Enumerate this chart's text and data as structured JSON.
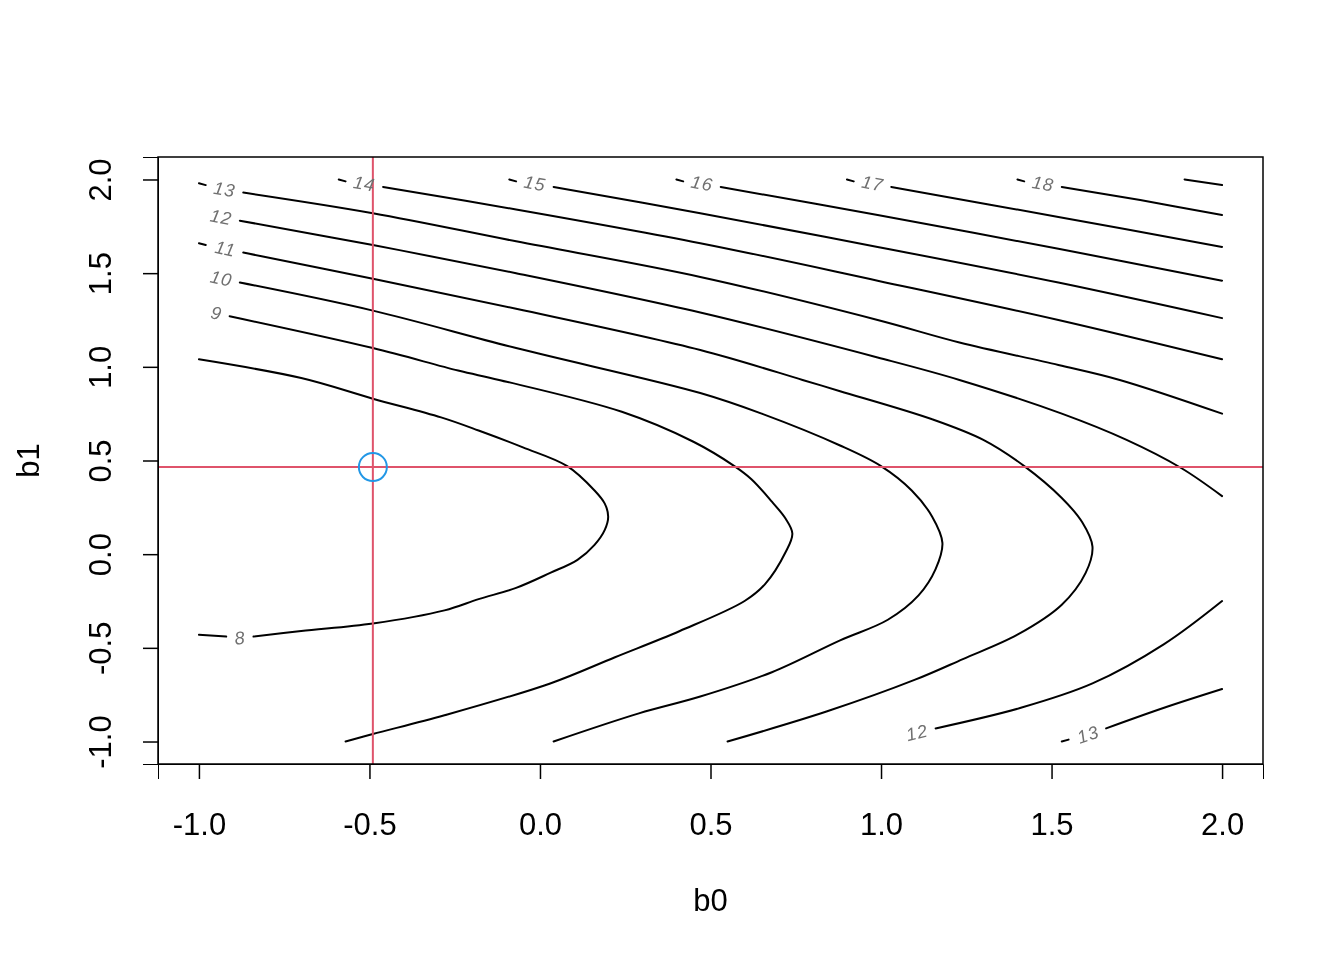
{
  "chart_data": {
    "type": "line",
    "xlabel": "b0",
    "ylabel": "b1",
    "xlim": [
      -1.12,
      2.12
    ],
    "ylim": [
      -1.12,
      2.12
    ],
    "xticks": [
      {
        "value": -1,
        "label": "-1.0"
      },
      -0.5,
      {
        "value": 0,
        "label": "0.0"
      },
      0.5,
      {
        "value": 1,
        "label": "1.0"
      },
      1.5,
      {
        "value": 2,
        "label": "2.0"
      }
    ],
    "yticks": [
      {
        "value": -1,
        "label": "-1.0"
      },
      -0.5,
      {
        "value": 0,
        "label": "0.0"
      },
      0.5,
      {
        "value": 1,
        "label": "1.0"
      },
      1.5,
      {
        "value": 2,
        "label": "2.0"
      }
    ],
    "series": [
      {
        "name": "8",
        "color": "#000000",
        "x": [
          -1.0,
          -0.92,
          null,
          -0.84,
          -0.7,
          -0.49,
          -0.28,
          -0.18,
          -0.07,
          0.03,
          0.11,
          0.16,
          0.19,
          0.2,
          0.19,
          0.16,
          0.08,
          -0.05,
          -0.18,
          -0.29,
          -0.49,
          -0.7,
          -1.0
        ],
        "values": [
          -0.43,
          -0.44,
          null,
          -0.44,
          -0.41,
          -0.37,
          -0.3,
          -0.24,
          -0.18,
          -0.1,
          -0.03,
          0.05,
          0.13,
          0.2,
          0.27,
          0.34,
          0.47,
          0.57,
          0.66,
          0.73,
          0.83,
          0.94,
          1.04
        ]
      },
      {
        "name": "9",
        "color": "#000000",
        "x": [
          -0.91,
          -0.49,
          -0.24,
          -0.12,
          0.24,
          0.45,
          0.57,
          0.62,
          0.68,
          0.72,
          0.74,
          0.72,
          0.66,
          0.6,
          0.41,
          0.22,
          0.03,
          -0.28,
          -0.49,
          -0.57
        ],
        "values": [
          1.27,
          1.1,
          0.98,
          0.93,
          0.76,
          0.6,
          0.47,
          0.4,
          0.28,
          0.19,
          0.11,
          0.01,
          -0.16,
          -0.25,
          -0.41,
          -0.55,
          -0.69,
          -0.86,
          -0.96,
          -1.0
        ]
      },
      {
        "name": "10",
        "color": "#000000",
        "x": [
          -0.88,
          -0.49,
          -0.07,
          0.47,
          0.65,
          0.88,
          1.0,
          1.09,
          1.15,
          1.18,
          1.16,
          1.11,
          1.02,
          0.88,
          0.68,
          0.47,
          0.29,
          0.04
        ],
        "values": [
          1.45,
          1.3,
          1.1,
          0.86,
          0.75,
          0.58,
          0.47,
          0.34,
          0.2,
          0.06,
          -0.08,
          -0.22,
          -0.35,
          -0.46,
          -0.63,
          -0.76,
          -0.85,
          -1.0
        ]
      },
      {
        "name": "11",
        "color": "#000000",
        "x": [
          -1.0,
          -0.98,
          null,
          -0.87,
          -0.49,
          -0.07,
          0.47,
          0.77,
          0.88,
          1.15,
          1.3,
          1.42,
          1.53,
          1.59,
          1.62,
          1.6,
          1.53,
          1.4,
          1.24,
          1.1,
          0.84,
          0.55
        ],
        "values": [
          1.66,
          1.65,
          null,
          1.61,
          1.47,
          1.31,
          1.09,
          0.93,
          0.87,
          0.72,
          0.61,
          0.47,
          0.3,
          0.17,
          0.04,
          -0.1,
          -0.27,
          -0.43,
          -0.56,
          -0.67,
          -0.84,
          -1.0
        ]
      },
      {
        "name": "12",
        "color": "#000000",
        "x": [
          -0.88,
          -0.49,
          -0.07,
          0.47,
          0.99,
          1.23,
          1.53,
          1.72,
          1.88,
          2.0,
          null,
          1.16,
          1.41,
          1.62,
          1.83,
          2.0
        ],
        "values": [
          1.78,
          1.65,
          1.5,
          1.29,
          1.05,
          0.93,
          0.75,
          0.61,
          0.46,
          0.31,
          null,
          -0.93,
          -0.82,
          -0.69,
          -0.48,
          -0.25
        ]
      },
      {
        "name": "13",
        "color": "#000000",
        "x": [
          -1.0,
          -0.98,
          null,
          -0.87,
          -0.49,
          -0.07,
          0.47,
          0.99,
          1.23,
          1.52,
          1.7,
          2.0,
          null,
          1.66,
          1.83,
          2.0,
          null,
          1.53,
          1.55
        ],
        "values": [
          1.98,
          1.97,
          null,
          1.93,
          1.82,
          1.67,
          1.48,
          1.25,
          1.13,
          1.01,
          0.93,
          0.75,
          null,
          -0.93,
          -0.82,
          -0.72,
          null,
          -1.0,
          -0.99
        ]
      },
      {
        "name": "14",
        "color": "#000000",
        "x": [
          -0.59,
          -0.57,
          null,
          -0.46,
          -0.07,
          0.47,
          0.99,
          1.52,
          2.0
        ],
        "values": [
          2.0,
          1.99,
          null,
          1.96,
          1.84,
          1.66,
          1.46,
          1.25,
          1.04
        ]
      },
      {
        "name": "15",
        "color": "#000000",
        "x": [
          -0.09,
          -0.07,
          null,
          0.04,
          0.47,
          0.99,
          1.52,
          2.0
        ],
        "values": [
          2.0,
          1.99,
          null,
          1.96,
          1.82,
          1.64,
          1.45,
          1.26
        ]
      },
      {
        "name": "16",
        "color": "#000000",
        "x": [
          0.4,
          0.42,
          null,
          0.53,
          0.99,
          1.52,
          2.0
        ],
        "values": [
          2.0,
          1.99,
          null,
          1.96,
          1.81,
          1.63,
          1.46
        ]
      },
      {
        "name": "17",
        "color": "#000000",
        "x": [
          0.9,
          0.92,
          null,
          1.03,
          1.52,
          2.0
        ],
        "values": [
          2.0,
          1.99,
          null,
          1.96,
          1.8,
          1.64
        ]
      },
      {
        "name": "18",
        "color": "#000000",
        "x": [
          1.4,
          1.42,
          null,
          1.53,
          1.76,
          2.0
        ],
        "values": [
          2.0,
          1.99,
          null,
          1.96,
          1.89,
          1.81
        ]
      },
      {
        "color": "#000000",
        "x": [
          1.89,
          2.0
        ],
        "values": [
          2.0,
          1.97
        ]
      },
      {
        "type": "scatter",
        "color": "#2297e6",
        "marker": "circle",
        "x": [
          -0.49
        ],
        "values": [
          0.465
        ]
      }
    ],
    "ref_lines": [
      {
        "axis": "x",
        "value": -0.49,
        "color": "#df536b"
      },
      {
        "axis": "y",
        "value": 0.465,
        "color": "#df536b"
      }
    ]
  }
}
